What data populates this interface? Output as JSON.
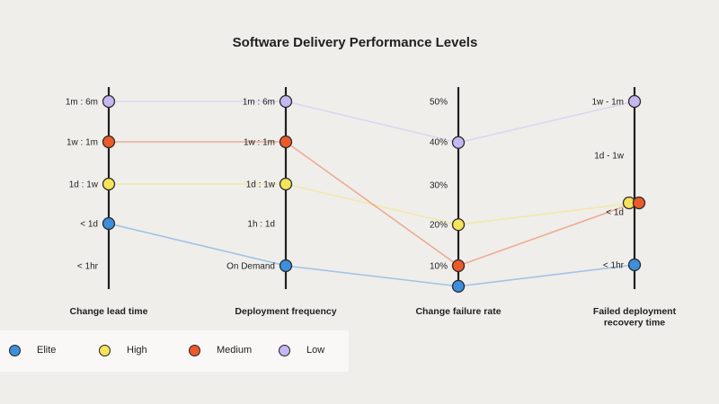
{
  "chart_data": {
    "type": "parallel-coordinates",
    "title": "Software Delivery Performance Levels",
    "axes": [
      {
        "label": "Change lead time",
        "ticks": [
          "1m : 6m",
          "1w : 1m",
          "1d : 1w",
          "< 1d",
          "< 1hr"
        ]
      },
      {
        "label": "Deployment frequency",
        "ticks": [
          "1m : 6m",
          "1w : 1m",
          "1d : 1w",
          "1h : 1d",
          "On Demand"
        ]
      },
      {
        "label": "Change failure rate",
        "ticks": [
          "50%",
          "40%",
          "30%",
          "20%",
          "10%"
        ]
      },
      {
        "label": "Failed deployment recovery time",
        "label_lines": [
          "Failed deployment",
          "recovery time"
        ],
        "ticks": [
          "1w - 1m",
          "1d - 1w",
          "< 1d",
          "< 1hr"
        ]
      }
    ],
    "series": [
      {
        "name": "Elite",
        "color": "#3d8fdc",
        "values": [
          "< 1d",
          "On Demand",
          0.05,
          "< 1hr"
        ]
      },
      {
        "name": "High",
        "color": "#f5e35a",
        "values": [
          "1d : 1w",
          "1d : 1w",
          0.2,
          "< 1d"
        ]
      },
      {
        "name": "Medium",
        "color": "#ec5a2a",
        "values": [
          "1w : 1m",
          "1w : 1m",
          0.1,
          "< 1d"
        ]
      },
      {
        "name": "Low",
        "color": "#c5b7f2",
        "values": [
          "1m : 6m",
          "1m : 6m",
          0.4,
          "1w - 1m"
        ]
      }
    ],
    "legend_position": "bottom-left",
    "grid": false
  }
}
